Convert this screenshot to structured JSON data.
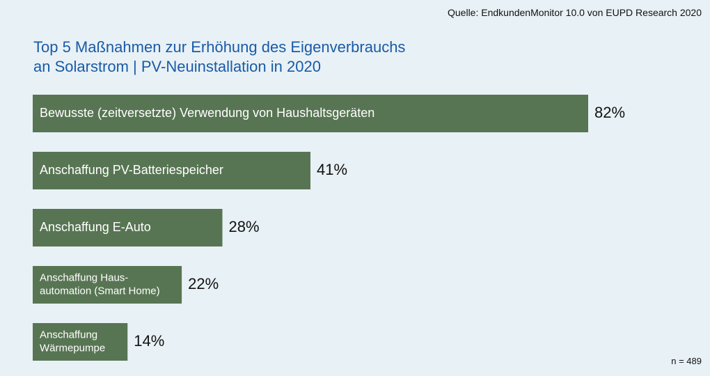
{
  "source": "Quelle: EndkundenMonitor 10.0 von EUPD Research 2020",
  "n_label": "n = 489",
  "bar_color": "#587553",
  "chart_data": {
    "type": "bar",
    "orientation": "horizontal",
    "title": [
      "Top 5 Maßnahmen zur Erhöhung des Eigenverbrauchs",
      "an Solarstrom | PV-Neuinstallation in 2020"
    ],
    "categories": [
      [
        "Bewusste (zeitversetzte) Verwendung von Haushaltsgeräten"
      ],
      [
        "Anschaffung PV-Batteriespeicher"
      ],
      [
        "Anschaffung E-Auto"
      ],
      [
        "Anschaffung Haus-",
        "automation (Smart Home)"
      ],
      [
        "Anschaffung",
        "Wärmepumpe"
      ]
    ],
    "values": [
      82,
      41,
      28,
      22,
      14
    ],
    "value_labels": [
      "82%",
      "41%",
      "28%",
      "22%",
      "14%"
    ],
    "unit": "%",
    "xlim": [
      0,
      100
    ],
    "grid": false,
    "legend": "none"
  }
}
